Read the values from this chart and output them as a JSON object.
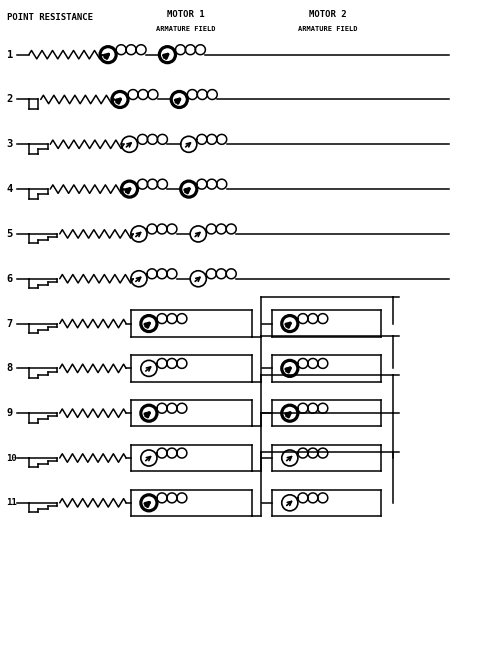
{
  "title_left": "POINT RESISTANCE",
  "title_mid": "MOTOR 1",
  "title_right": "MOTOR 2",
  "sub_mid": "ARMATURE FIELD",
  "sub_right": "ARMATURE FIELD",
  "bg_color": "#ffffff",
  "line_color": "#000000",
  "fig_width": 4.8,
  "fig_height": 6.66,
  "dpi": 100,
  "row_labels": [
    "1",
    "2",
    "3",
    "4",
    "5",
    "6",
    "7",
    "8",
    "9",
    "10",
    "11"
  ],
  "resistor_steps": [
    0,
    1,
    2,
    2,
    3,
    3,
    3,
    3,
    3,
    3,
    3
  ],
  "thick_arm1": [
    true,
    true,
    false,
    true,
    false,
    false,
    true,
    false,
    true,
    false,
    true
  ],
  "thick_arm2": [
    true,
    true,
    false,
    true,
    false,
    false,
    true,
    true,
    true,
    false,
    false
  ]
}
